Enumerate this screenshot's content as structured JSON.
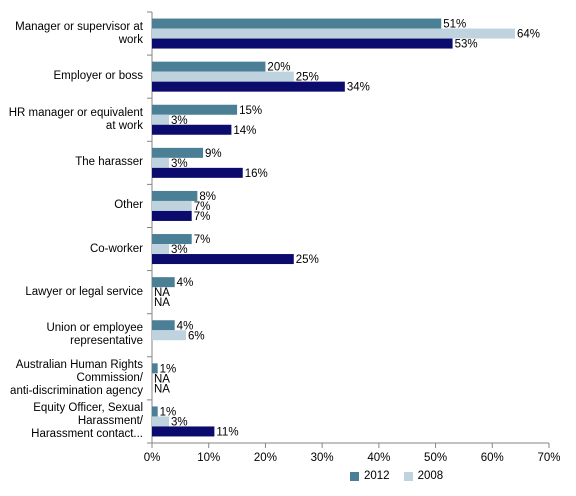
{
  "chart_data": {
    "type": "bar",
    "orientation": "horizontal",
    "categories": [
      "Manager or supervisor at work",
      "Employer or boss",
      "HR manager or equivalent at work",
      "The harasser",
      "Other",
      "Co-worker",
      "Lawyer or legal service",
      "Union or employee representative",
      "Australian Human Rights Commission/ anti-discrimination agency",
      "Equity Officer, Sexual Harassment/ Harassment contact..."
    ],
    "category_lines": [
      [
        "Manager or supervisor at",
        "work"
      ],
      [
        "Employer or boss"
      ],
      [
        "HR manager or equivalent",
        "at work"
      ],
      [
        "The harasser"
      ],
      [
        "Other"
      ],
      [
        "Co-worker"
      ],
      [
        "Lawyer or legal service"
      ],
      [
        "Union or employee",
        "representative"
      ],
      [
        "Australian Human Rights",
        "Commission/",
        "anti-discrimination agency"
      ],
      [
        "Equity Officer, Sexual",
        "Harassment/",
        "Harassment contact..."
      ]
    ],
    "series": [
      {
        "name": "2012",
        "color": "#4a7f95",
        "values": [
          51,
          20,
          15,
          9,
          8,
          7,
          4,
          4,
          1,
          1
        ],
        "labels": [
          "51%",
          "20%",
          "15%",
          "9%",
          "8%",
          "7%",
          "4%",
          "4%",
          "1%",
          "1%"
        ]
      },
      {
        "name": "2008",
        "color": "#bfd3df",
        "values": [
          64,
          25,
          3,
          3,
          7,
          3,
          null,
          6,
          null,
          3
        ],
        "labels": [
          "64%",
          "25%",
          "3%",
          "3%",
          "7%",
          "3%",
          "NA",
          "6%",
          "NA",
          "3%"
        ]
      },
      {
        "name": "",
        "color": "#0b0b6e",
        "values": [
          53,
          34,
          14,
          16,
          7,
          25,
          null,
          null,
          null,
          11
        ],
        "labels": [
          "53%",
          "34%",
          "14%",
          "16%",
          "7%",
          "25%",
          "NA",
          "",
          "NA",
          "11%"
        ]
      }
    ],
    "xlim": [
      0,
      70
    ],
    "xticks": [
      "0%",
      "10%",
      "20%",
      "30%",
      "40%",
      "50%",
      "60%",
      "70%"
    ],
    "legend": {
      "position": "bottom",
      "entries": [
        "2012",
        "2008"
      ]
    },
    "grid": false,
    "title": "",
    "xlabel": "",
    "ylabel": ""
  }
}
